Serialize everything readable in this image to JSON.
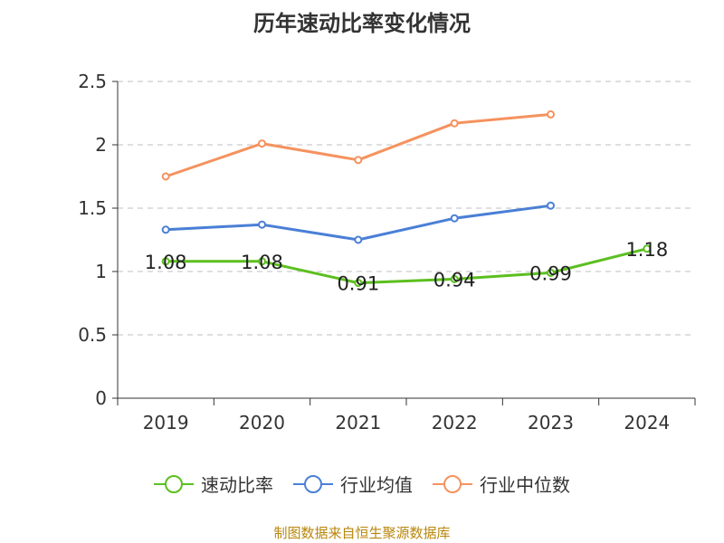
{
  "chart_data": {
    "type": "line",
    "title": "历年速动比率变化情况",
    "categories": [
      "2019",
      "2020",
      "2021",
      "2022",
      "2023",
      "2024"
    ],
    "ylim": [
      0,
      2.5
    ],
    "yticks": [
      "0",
      "0.5",
      "1",
      "1.5",
      "2",
      "2.5"
    ],
    "grid": true,
    "legend_position": "bottom",
    "series": [
      {
        "name": "速动比率",
        "color": "#5cbf1f",
        "values": [
          1.08,
          1.08,
          0.91,
          0.94,
          0.99,
          1.18
        ],
        "labels": [
          "1.08",
          "1.08",
          "0.91",
          "0.94",
          "0.99",
          "1.18"
        ]
      },
      {
        "name": "行业均值",
        "color": "#4a7fd6",
        "values": [
          1.33,
          1.37,
          1.25,
          1.42,
          1.52,
          null
        ]
      },
      {
        "name": "行业中位数",
        "color": "#f5925e",
        "values": [
          1.75,
          2.01,
          1.88,
          2.17,
          2.24,
          null
        ]
      }
    ]
  },
  "source": "制图数据来自恒生聚源数据库"
}
